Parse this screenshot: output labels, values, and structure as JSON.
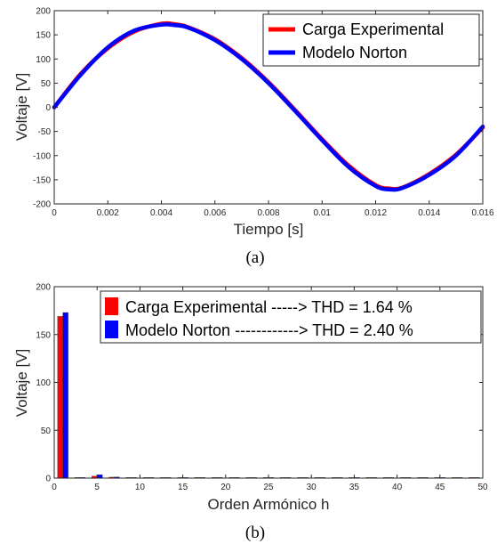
{
  "chart_data": [
    {
      "type": "line",
      "caption": "(a)",
      "xlabel": "Tiempo [s]",
      "ylabel": "Voltaje [V]",
      "xlim": [
        0,
        0.016
      ],
      "ylim": [
        -200,
        200
      ],
      "xticks": [
        "0",
        "0.002",
        "0.004",
        "0.006",
        "0.008",
        "0.01",
        "0.012",
        "0.014",
        "0.016"
      ],
      "yticks": [
        "-200",
        "-150",
        "-100",
        "-50",
        "0",
        "50",
        "100",
        "150",
        "200"
      ],
      "legend_position": "top-right",
      "grid": false,
      "x": [
        0,
        0.001,
        0.002,
        0.003,
        0.004,
        0.0045,
        0.005,
        0.006,
        0.007,
        0.008,
        0.009,
        0.01,
        0.011,
        0.012,
        0.0125,
        0.013,
        0.014,
        0.015,
        0.016
      ],
      "series": [
        {
          "name": "Carga Experimental",
          "color": "#ff0000",
          "values": [
            0,
            70,
            122,
            157,
            173,
            172,
            166,
            141,
            102,
            52,
            -6,
            -66,
            -121,
            -161,
            -168,
            -166,
            -138,
            -98,
            -42
          ]
        },
        {
          "name": "Modelo Norton",
          "color": "#0000ff",
          "values": [
            0,
            68,
            124,
            159,
            171,
            170,
            165,
            139,
            100,
            50,
            -8,
            -68,
            -124,
            -163,
            -170,
            -167,
            -140,
            -100,
            -40
          ]
        }
      ]
    },
    {
      "type": "bar",
      "caption": "(b)",
      "xlabel": "Orden Armónico h",
      "ylabel": "Voltaje [V]",
      "xlim": [
        0,
        50
      ],
      "ylim": [
        0,
        200
      ],
      "xticks": [
        "0",
        "5",
        "10",
        "15",
        "20",
        "25",
        "30",
        "35",
        "40",
        "45",
        "50"
      ],
      "yticks": [
        "0",
        "50",
        "100",
        "150",
        "200"
      ],
      "legend_position": "top-right",
      "grid": false,
      "categories": [
        1,
        3,
        5,
        7,
        9,
        11,
        13,
        15,
        17,
        19,
        21,
        23,
        25,
        27,
        29,
        31,
        33,
        35,
        37,
        39,
        41,
        43,
        45,
        47,
        49
      ],
      "series": [
        {
          "name": "Carga Experimental -----> THD = 1.64 %",
          "color": "#ff0000",
          "values": [
            169,
            0.6,
            2.0,
            1.0,
            0.5,
            0.4,
            0.3,
            0.2,
            0.2,
            0.2,
            0.2,
            0.1,
            0.1,
            0.1,
            0.1,
            0.1,
            0.1,
            0.1,
            0.1,
            0.1,
            0.1,
            0.1,
            0.1,
            0.1,
            0.1
          ]
        },
        {
          "name": "Modelo Norton ------------> THD = 2.40 %",
          "color": "#0000ff",
          "values": [
            173,
            0.8,
            3.5,
            1.2,
            0.6,
            0.4,
            0.3,
            0.3,
            0.2,
            0.2,
            0.2,
            0.2,
            0.1,
            0.1,
            0.1,
            0.1,
            0.1,
            0.1,
            0.1,
            0.1,
            0.1,
            0.1,
            0.1,
            0.1,
            0.1
          ]
        }
      ]
    }
  ]
}
